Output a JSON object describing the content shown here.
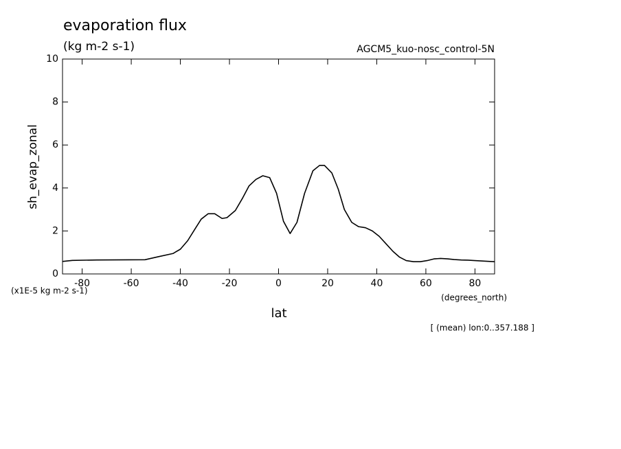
{
  "chart_data": {
    "type": "line",
    "title": "evaporation flux",
    "subtitle": "(kg m-2 s-1)",
    "experiment": "AGCM5_kuo-nosc_control-5N",
    "y_label": "sh_evap_zonal",
    "x_label": "lat",
    "y_units": "(x1E-5 kg m-2 s-1)",
    "x_units": "(degrees_north)",
    "note": "[ (mean) lon:0..357.188 ]",
    "x": [
      -88,
      -84,
      -74,
      -54.4,
      -49,
      -43,
      -40,
      -37,
      -34,
      -31.5,
      -28.7,
      -26,
      -23,
      -21,
      -17.6,
      -14.8,
      -12,
      -9.2,
      -6.4,
      -3.6,
      -0.8,
      2,
      4.7,
      7.5,
      10.6,
      14,
      16.7,
      18.7,
      21.7,
      24.3,
      26.8,
      29.8,
      32.6,
      35.4,
      38.2,
      41,
      43.8,
      46.6,
      49.3,
      52,
      55,
      57.7,
      60.5,
      63.3,
      66,
      68.9,
      71.6,
      74.4,
      77.2,
      80,
      88
    ],
    "series": [
      {
        "color": "#000000",
        "values": [
          0.58,
          0.63,
          0.65,
          0.66,
          0.8,
          0.95,
          1.15,
          1.55,
          2.1,
          2.55,
          2.8,
          2.8,
          2.58,
          2.62,
          2.95,
          3.5,
          4.1,
          4.4,
          4.57,
          4.48,
          3.75,
          2.45,
          1.88,
          2.4,
          3.75,
          4.8,
          5.05,
          5.05,
          4.7,
          3.95,
          3.0,
          2.4,
          2.2,
          2.15,
          2.0,
          1.75,
          1.4,
          1.05,
          0.78,
          0.62,
          0.57,
          0.57,
          0.62,
          0.7,
          0.72,
          0.7,
          0.67,
          0.65,
          0.64,
          0.62,
          0.57
        ]
      }
    ],
    "xlim": [
      -88,
      88
    ],
    "xticks": [
      -80,
      -60,
      -40,
      -20,
      0,
      20,
      40,
      60,
      80
    ],
    "ylim": [
      0,
      10
    ],
    "yticks": [
      0,
      2,
      4,
      6,
      8,
      10
    ],
    "grid": false
  }
}
